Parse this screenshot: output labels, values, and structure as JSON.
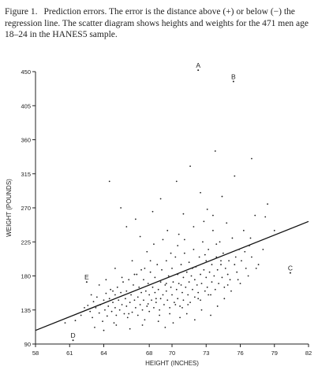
{
  "caption": {
    "label": "Figure 1.",
    "text": "Prediction errors. The error is the distance above (+) or below (−) the regression line. The scatter diagram shows heights and weights for the 471 men age 18–24 in the HANES5 sample."
  },
  "chart_data": {
    "type": "scatter",
    "title": "",
    "xlabel": "HEIGHT (INCHES)",
    "ylabel": "WEIGHT (POUNDS)",
    "xlim": [
      58,
      82
    ],
    "ylim": [
      90,
      450
    ],
    "xticks": [
      58,
      61,
      64,
      68,
      70,
      73,
      76,
      79,
      82
    ],
    "yticks": [
      90,
      135,
      180,
      225,
      270,
      315,
      360,
      405,
      450
    ],
    "grid": false,
    "regression_line": {
      "x": [
        58,
        82
      ],
      "y": [
        108,
        252
      ]
    },
    "labeled_points": [
      {
        "label": "A",
        "x": 72.3,
        "y": 452
      },
      {
        "label": "B",
        "x": 75.4,
        "y": 437
      },
      {
        "label": "C",
        "x": 80.4,
        "y": 184
      },
      {
        "label": "D",
        "x": 61.3,
        "y": 95
      },
      {
        "label": "E",
        "x": 62.5,
        "y": 172
      }
    ],
    "series": [
      {
        "points": [
          [
            60.6,
            118
          ],
          [
            61.5,
            121
          ],
          [
            62.0,
            128
          ],
          [
            62.3,
            138
          ],
          [
            62.6,
            141
          ],
          [
            62.8,
            133
          ],
          [
            63.0,
            125
          ],
          [
            63.1,
            146
          ],
          [
            63.3,
            138
          ],
          [
            63.4,
            152
          ],
          [
            63.6,
            131
          ],
          [
            63.7,
            142
          ],
          [
            63.9,
            120
          ],
          [
            64.0,
            148
          ],
          [
            64.1,
            135
          ],
          [
            64.2,
            157
          ],
          [
            64.3,
            127
          ],
          [
            64.4,
            140
          ],
          [
            64.5,
            150
          ],
          [
            64.6,
            162
          ],
          [
            64.7,
            133
          ],
          [
            64.8,
            145
          ],
          [
            64.9,
            118
          ],
          [
            65.0,
            155
          ],
          [
            65.0,
            138
          ],
          [
            65.1,
            128
          ],
          [
            65.2,
            165
          ],
          [
            65.3,
            148
          ],
          [
            65.4,
            135
          ],
          [
            65.5,
            158
          ],
          [
            65.6,
            142
          ],
          [
            65.7,
            172
          ],
          [
            65.8,
            130
          ],
          [
            65.9,
            150
          ],
          [
            66.0,
            140
          ],
          [
            66.0,
            160
          ],
          [
            66.1,
            125
          ],
          [
            66.2,
            175
          ],
          [
            66.3,
            145
          ],
          [
            66.4,
            155
          ],
          [
            66.5,
            132
          ],
          [
            66.6,
            168
          ],
          [
            66.7,
            148
          ],
          [
            66.8,
            138
          ],
          [
            66.9,
            182
          ],
          [
            67.0,
            152
          ],
          [
            67.0,
            128
          ],
          [
            67.1,
            165
          ],
          [
            67.2,
            142
          ],
          [
            67.3,
            158
          ],
          [
            67.4,
            135
          ],
          [
            67.5,
            175
          ],
          [
            67.5,
            148
          ],
          [
            67.6,
            190
          ],
          [
            67.7,
            160
          ],
          [
            67.8,
            140
          ],
          [
            67.9,
            170
          ],
          [
            68.0,
            155
          ],
          [
            68.0,
            133
          ],
          [
            68.1,
            185
          ],
          [
            68.2,
            148
          ],
          [
            68.3,
            165
          ],
          [
            68.4,
            138
          ],
          [
            68.5,
            178
          ],
          [
            68.5,
            158
          ],
          [
            68.6,
            145
          ],
          [
            68.7,
            195
          ],
          [
            68.8,
            162
          ],
          [
            68.9,
            135
          ],
          [
            69.0,
            172
          ],
          [
            69.0,
            150
          ],
          [
            69.1,
            188
          ],
          [
            69.2,
            155
          ],
          [
            69.3,
            142
          ],
          [
            69.4,
            168
          ],
          [
            69.5,
            200
          ],
          [
            69.5,
            160
          ],
          [
            69.6,
            148
          ],
          [
            69.7,
            180
          ],
          [
            69.8,
            138
          ],
          [
            69.9,
            165
          ],
          [
            70.0,
            190
          ],
          [
            70.0,
            155
          ],
          [
            70.1,
            172
          ],
          [
            70.2,
            145
          ],
          [
            70.3,
            205
          ],
          [
            70.4,
            162
          ],
          [
            70.5,
            182
          ],
          [
            70.5,
            150
          ],
          [
            70.6,
            170
          ],
          [
            70.7,
            140
          ],
          [
            70.8,
            195
          ],
          [
            70.9,
            158
          ],
          [
            71.0,
            178
          ],
          [
            71.0,
            148
          ],
          [
            71.1,
            210
          ],
          [
            71.2,
            165
          ],
          [
            71.3,
            185
          ],
          [
            71.4,
            155
          ],
          [
            71.5,
            172
          ],
          [
            71.5,
            198
          ],
          [
            71.6,
            145
          ],
          [
            71.7,
            180
          ],
          [
            71.8,
            162
          ],
          [
            71.9,
            215
          ],
          [
            72.0,
            175
          ],
          [
            72.0,
            152
          ],
          [
            72.1,
            192
          ],
          [
            72.2,
            168
          ],
          [
            72.3,
            158
          ],
          [
            72.4,
            205
          ],
          [
            72.5,
            182
          ],
          [
            72.5,
            148
          ],
          [
            72.6,
            170
          ],
          [
            72.7,
            225
          ],
          [
            72.8,
            188
          ],
          [
            72.9,
            160
          ],
          [
            73.0,
            178
          ],
          [
            73.0,
            200
          ],
          [
            73.1,
            165
          ],
          [
            73.2,
            215
          ],
          [
            73.3,
            185
          ],
          [
            73.4,
            155
          ],
          [
            73.5,
            195
          ],
          [
            73.5,
            172
          ],
          [
            73.6,
            240
          ],
          [
            73.7,
            180
          ],
          [
            73.8,
            162
          ],
          [
            73.9,
            205
          ],
          [
            74.0,
            188
          ],
          [
            74.1,
            170
          ],
          [
            74.2,
            225
          ],
          [
            74.3,
            195
          ],
          [
            74.4,
            178
          ],
          [
            74.5,
            210
          ],
          [
            74.6,
            165
          ],
          [
            74.7,
            190
          ],
          [
            74.8,
            250
          ],
          [
            74.9,
            182
          ],
          [
            75.0,
            200
          ],
          [
            75.1,
            175
          ],
          [
            75.3,
            230
          ],
          [
            75.5,
            195
          ],
          [
            75.7,
            185
          ],
          [
            75.9,
            215
          ],
          [
            76.1,
            200
          ],
          [
            76.3,
            240
          ],
          [
            76.5,
            190
          ],
          [
            76.8,
            220
          ],
          [
            77.0,
            205
          ],
          [
            77.3,
            260
          ],
          [
            77.6,
            195
          ],
          [
            78.0,
            215
          ],
          [
            78.4,
            275
          ],
          [
            79.0,
            240
          ],
          [
            64.5,
            305
          ],
          [
            65.5,
            270
          ],
          [
            66.0,
            245
          ],
          [
            66.8,
            255
          ],
          [
            67.2,
            232
          ],
          [
            68.3,
            265
          ],
          [
            69.0,
            282
          ],
          [
            69.6,
            240
          ],
          [
            70.4,
            305
          ],
          [
            71.0,
            262
          ],
          [
            71.6,
            325
          ],
          [
            72.5,
            290
          ],
          [
            73.1,
            268
          ],
          [
            73.8,
            345
          ],
          [
            74.4,
            285
          ],
          [
            75.5,
            312
          ],
          [
            77.0,
            335
          ],
          [
            68.8,
            120
          ],
          [
            69.4,
            112
          ],
          [
            70.1,
            118
          ],
          [
            70.7,
            125
          ],
          [
            71.3,
            130
          ],
          [
            72.0,
            122
          ],
          [
            72.6,
            135
          ],
          [
            73.4,
            128
          ],
          [
            74.0,
            140
          ],
          [
            67.4,
            115
          ],
          [
            66.3,
            110
          ],
          [
            65.1,
            115
          ],
          [
            64.0,
            108
          ],
          [
            63.2,
            112
          ],
          [
            74.6,
            150
          ],
          [
            75.2,
            160
          ],
          [
            76.0,
            170
          ],
          [
            76.7,
            180
          ],
          [
            77.4,
            190
          ],
          [
            66.5,
            200
          ],
          [
            67.8,
            212
          ],
          [
            68.4,
            222
          ],
          [
            69.2,
            228
          ],
          [
            70.6,
            235
          ],
          [
            71.9,
            245
          ],
          [
            72.8,
            252
          ],
          [
            73.6,
            260
          ],
          [
            65.0,
            190
          ],
          [
            64.2,
            175
          ],
          [
            63.6,
            168
          ],
          [
            62.9,
            155
          ],
          [
            70.3,
            142
          ],
          [
            69.8,
            130
          ],
          [
            68.9,
            128
          ],
          [
            67.6,
            122
          ],
          [
            70.9,
            138
          ],
          [
            71.4,
            142
          ],
          [
            72.3,
            150
          ],
          [
            73.2,
            155
          ],
          [
            74.9,
            168
          ],
          [
            75.8,
            175
          ],
          [
            76.9,
            230
          ],
          [
            78.2,
            258
          ],
          [
            64.8,
            160
          ],
          [
            66.2,
            130
          ],
          [
            67.9,
            143
          ],
          [
            68.6,
            150
          ],
          [
            69.5,
            170
          ],
          [
            70.8,
            168
          ],
          [
            71.8,
            190
          ],
          [
            72.9,
            208
          ],
          [
            73.9,
            222
          ],
          [
            74.3,
            200
          ],
          [
            75.6,
            205
          ],
          [
            76.4,
            212
          ],
          [
            69.9,
            210
          ],
          [
            70.5,
            220
          ],
          [
            71.1,
            228
          ],
          [
            68.1,
            200
          ],
          [
            67.3,
            188
          ],
          [
            66.7,
            182
          ],
          [
            65.6,
            178
          ]
        ]
      }
    ]
  }
}
